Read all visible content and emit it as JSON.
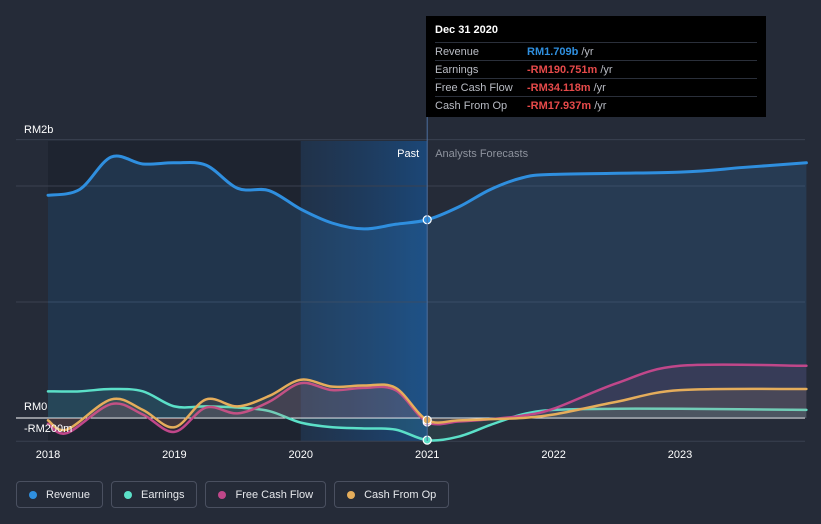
{
  "chart_data": {
    "type": "line",
    "x_ticks": [
      "2018",
      "2019",
      "2020",
      "2021",
      "2022",
      "2023"
    ],
    "y_labels": [
      "RM2b",
      "RM0",
      "-RM200m"
    ],
    "divider_x": 2021.0,
    "past_label": "Past",
    "forecast_label": "Analysts Forecasts",
    "series": [
      {
        "name": "Revenue",
        "color": "#2f8fdf",
        "fill": true,
        "points": [
          [
            2018.0,
            1.92
          ],
          [
            2018.25,
            1.97
          ],
          [
            2018.5,
            2.25
          ],
          [
            2018.75,
            2.19
          ],
          [
            2019.0,
            2.2
          ],
          [
            2019.25,
            2.18
          ],
          [
            2019.5,
            1.98
          ],
          [
            2019.75,
            1.96
          ],
          [
            2020.0,
            1.8
          ],
          [
            2020.25,
            1.68
          ],
          [
            2020.5,
            1.63
          ],
          [
            2020.75,
            1.67
          ],
          [
            2021.0,
            1.709
          ],
          [
            2021.25,
            1.82
          ],
          [
            2021.5,
            1.97
          ],
          [
            2021.75,
            2.07
          ],
          [
            2022.0,
            2.1
          ],
          [
            2023.0,
            2.12
          ],
          [
            2023.5,
            2.16
          ],
          [
            2024.0,
            2.2
          ]
        ]
      },
      {
        "name": "Earnings",
        "color": "#5be0c8",
        "points": [
          [
            2018.0,
            0.23
          ],
          [
            2018.25,
            0.23
          ],
          [
            2018.5,
            0.25
          ],
          [
            2018.75,
            0.23
          ],
          [
            2019.0,
            0.1
          ],
          [
            2019.25,
            0.1
          ],
          [
            2019.5,
            0.09
          ],
          [
            2019.75,
            0.06
          ],
          [
            2020.0,
            -0.04
          ],
          [
            2020.25,
            -0.08
          ],
          [
            2020.5,
            -0.09
          ],
          [
            2020.75,
            -0.1
          ],
          [
            2021.0,
            -0.190751
          ],
          [
            2021.25,
            -0.16
          ],
          [
            2021.5,
            -0.06
          ],
          [
            2021.75,
            0.03
          ],
          [
            2022.0,
            0.07
          ],
          [
            2022.5,
            0.08
          ],
          [
            2023.0,
            0.08
          ],
          [
            2024.0,
            0.07
          ]
        ]
      },
      {
        "name": "Free Cash Flow",
        "color": "#c0478a",
        "points": [
          [
            2018.0,
            -0.05
          ],
          [
            2018.15,
            -0.13
          ],
          [
            2018.5,
            0.12
          ],
          [
            2018.75,
            0.03
          ],
          [
            2019.0,
            -0.12
          ],
          [
            2019.25,
            0.09
          ],
          [
            2019.5,
            0.04
          ],
          [
            2019.75,
            0.14
          ],
          [
            2020.0,
            0.3
          ],
          [
            2020.25,
            0.24
          ],
          [
            2020.5,
            0.26
          ],
          [
            2020.75,
            0.24
          ],
          [
            2021.0,
            -0.034118
          ],
          [
            2021.25,
            -0.03
          ],
          [
            2021.5,
            -0.01
          ],
          [
            2021.75,
            0.02
          ],
          [
            2022.0,
            0.08
          ],
          [
            2022.5,
            0.3
          ],
          [
            2023.0,
            0.45
          ],
          [
            2024.0,
            0.45
          ]
        ]
      },
      {
        "name": "Cash From Op",
        "color": "#e5ad5b",
        "points": [
          [
            2018.0,
            -0.02
          ],
          [
            2018.15,
            -0.1
          ],
          [
            2018.5,
            0.16
          ],
          [
            2018.75,
            0.07
          ],
          [
            2019.0,
            -0.08
          ],
          [
            2019.25,
            0.16
          ],
          [
            2019.5,
            0.1
          ],
          [
            2019.75,
            0.19
          ],
          [
            2020.0,
            0.33
          ],
          [
            2020.25,
            0.27
          ],
          [
            2020.5,
            0.28
          ],
          [
            2020.75,
            0.26
          ],
          [
            2021.0,
            -0.017937
          ],
          [
            2021.25,
            -0.02
          ],
          [
            2021.5,
            -0.01
          ],
          [
            2021.75,
            0.0
          ],
          [
            2022.0,
            0.03
          ],
          [
            2022.5,
            0.14
          ],
          [
            2023.0,
            0.24
          ],
          [
            2024.0,
            0.25
          ]
        ]
      }
    ]
  },
  "tooltip": {
    "date": "Dec 31 2020",
    "rows": [
      {
        "label": "Revenue",
        "value": "RM1.709b",
        "unit": "/yr",
        "color": "#2f8fdf"
      },
      {
        "label": "Earnings",
        "value": "-RM190.751m",
        "unit": "/yr",
        "color": "#e64a4a"
      },
      {
        "label": "Free Cash Flow",
        "value": "-RM34.118m",
        "unit": "/yr",
        "color": "#e64a4a"
      },
      {
        "label": "Cash From Op",
        "value": "-RM17.937m",
        "unit": "/yr",
        "color": "#e64a4a"
      }
    ]
  },
  "legend": [
    {
      "label": "Revenue",
      "color": "#2f8fdf"
    },
    {
      "label": "Earnings",
      "color": "#5be0c8"
    },
    {
      "label": "Free Cash Flow",
      "color": "#c0478a"
    },
    {
      "label": "Cash From Op",
      "color": "#e5ad5b"
    }
  ]
}
